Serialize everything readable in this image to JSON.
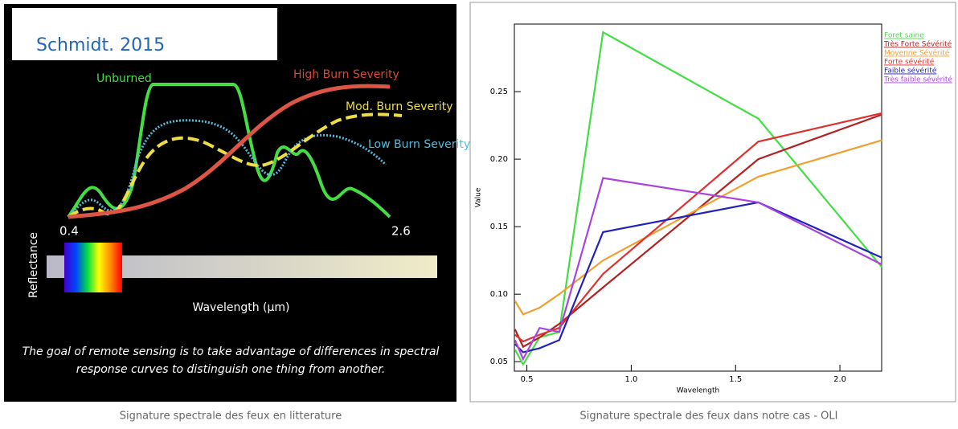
{
  "left_figure": {
    "source": "Schmidt. 2015",
    "labels": {
      "unburned": "Unburned",
      "high": "High Burn Severity",
      "mod": "Mod. Burn Severity",
      "low": "Low Burn Severity"
    },
    "x_start": "0.4",
    "x_end": "2.6",
    "y_label": "Reflectance",
    "x_label": "Wavelength (µm)",
    "note": [
      "The goal of remote sensing is to take advantage of differences in spectral",
      "response curves to distinguish one thing from another."
    ]
  },
  "captions": [
    "Signature spectrale des feux en litterature",
    "Signature spectrale des feux dans notre cas - OLI"
  ],
  "chart_data": {
    "type": "line",
    "x_label": "Wavelength",
    "y_label": "Value",
    "x": [
      0.443,
      0.482,
      0.561,
      0.655,
      0.865,
      1.609,
      2.201
    ],
    "series": [
      {
        "name": "Foret saine",
        "color": "#44dd44",
        "values": [
          0.059,
          0.048,
          0.068,
          0.072,
          0.294,
          0.23,
          0.12
        ]
      },
      {
        "name": "Très Forte Sévérité",
        "color": "#b22222",
        "values": [
          0.074,
          0.061,
          0.068,
          0.078,
          0.105,
          0.2,
          0.233
        ]
      },
      {
        "name": "Moyenne Sévérité",
        "color": "#f0a030",
        "values": [
          0.095,
          0.085,
          0.09,
          0.1,
          0.125,
          0.187,
          0.214
        ]
      },
      {
        "name": "Forte sévérité",
        "color": "#e03030",
        "values": [
          0.07,
          0.065,
          0.07,
          0.075,
          0.115,
          0.213,
          0.234
        ]
      },
      {
        "name": "Faible sévérité",
        "color": "#2222bb",
        "values": [
          0.063,
          0.057,
          0.06,
          0.066,
          0.146,
          0.168,
          0.127
        ]
      },
      {
        "name": "Très faible sévérité",
        "color": "#aa44dd",
        "values": [
          0.066,
          0.052,
          0.075,
          0.072,
          0.186,
          0.168,
          0.122
        ]
      }
    ],
    "xlim": [
      0.44,
      2.2
    ],
    "ylim": [
      0.043,
      0.3
    ],
    "xticks": [
      0.5,
      {
        "value": 1,
        "label": "1.0"
      },
      1.5,
      {
        "value": 2,
        "label": "2.0"
      }
    ],
    "yticks": [
      0.05,
      {
        "value": 0.1,
        "label": "0.10"
      },
      0.15,
      {
        "value": 0.2,
        "label": "0.20"
      },
      0.25
    ]
  }
}
